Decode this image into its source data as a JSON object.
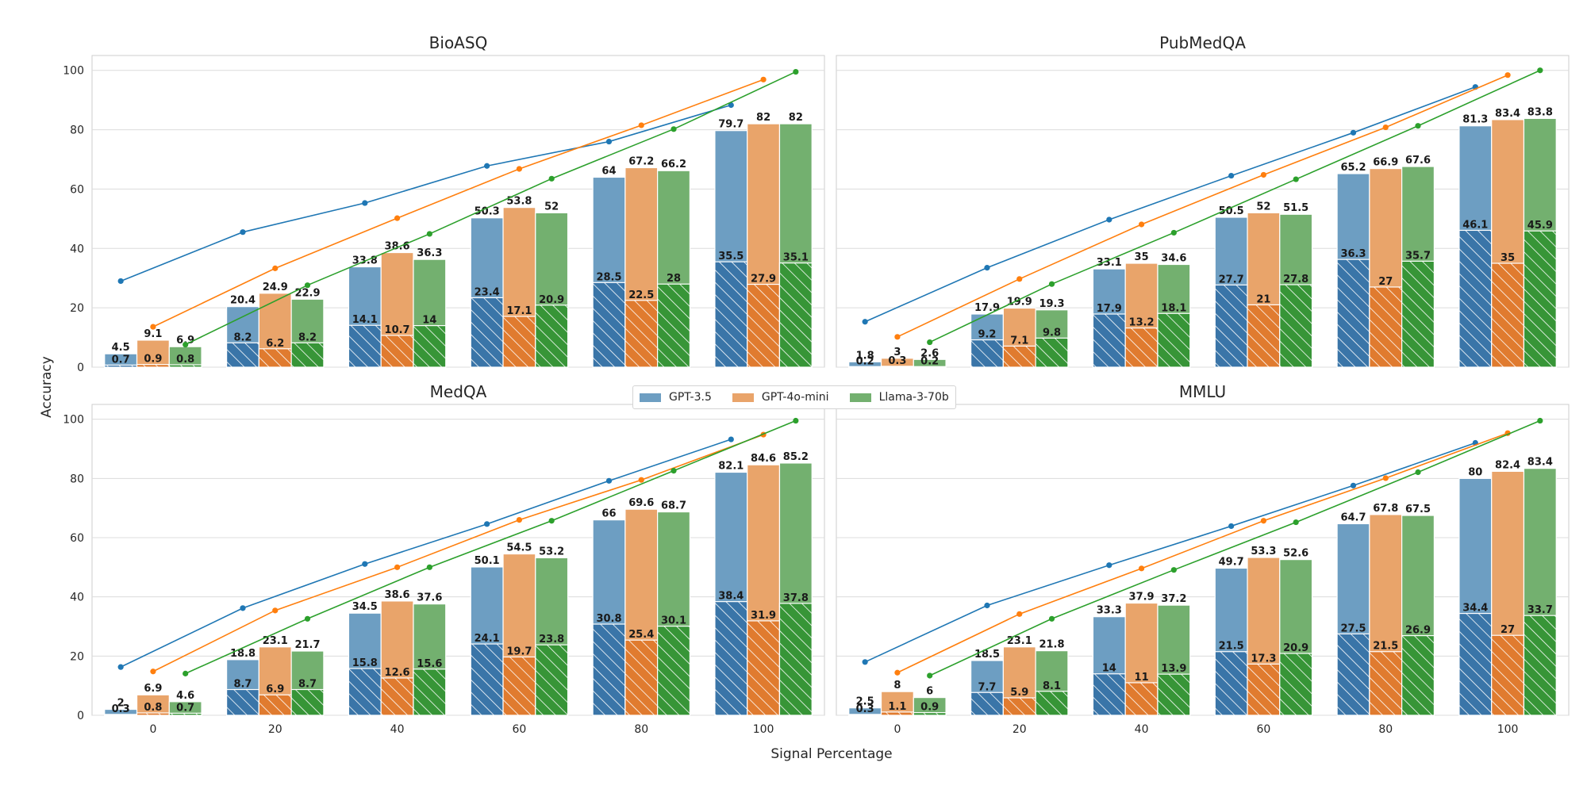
{
  "chart_data": {
    "type": "bar",
    "xlabel": "Signal Percentage",
    "ylabel": "Accuracy",
    "categories": [
      "0",
      "20",
      "40",
      "60",
      "80",
      "100"
    ],
    "ylim": [
      0,
      105
    ],
    "yticks": [
      "0",
      "20",
      "40",
      "60",
      "80",
      "100"
    ],
    "grid": true,
    "legend_position": "center",
    "series_names": [
      "GPT-3.5",
      "GPT-4o-mini",
      "Llama-3-70b"
    ],
    "colors": [
      "#1f77b4",
      "#ff7f0e",
      "#2ca02c"
    ],
    "panels": [
      {
        "title": "BioASQ",
        "totals": [
          [
            4.5,
            20.4,
            33.8,
            50.3,
            64,
            79.7
          ],
          [
            9.1,
            24.9,
            38.6,
            53.8,
            67.2,
            82
          ],
          [
            6.9,
            22.9,
            36.3,
            52,
            66.2,
            82
          ]
        ],
        "inner": [
          [
            0.7,
            8.2,
            14.1,
            23.4,
            28.5,
            35.5
          ],
          [
            0.9,
            6.2,
            10.7,
            17.1,
            22.5,
            27.9
          ],
          [
            0.8,
            8.2,
            14,
            20.9,
            28,
            35.1
          ]
        ],
        "lines": [
          [
            29,
            45.5,
            55.3,
            67.8,
            76,
            88.3
          ],
          [
            13.6,
            33.3,
            50.2,
            66.8,
            81.5,
            96.9
          ],
          [
            7.6,
            27.6,
            44.9,
            63.5,
            80.2,
            99.5
          ]
        ]
      },
      {
        "title": "PubMedQA",
        "totals": [
          [
            1.8,
            17.9,
            33.1,
            50.5,
            65.2,
            81.3
          ],
          [
            3,
            19.9,
            35,
            52,
            66.9,
            83.4
          ],
          [
            2.6,
            19.3,
            34.6,
            51.5,
            67.6,
            83.8
          ]
        ],
        "inner": [
          [
            0.2,
            9.2,
            17.9,
            27.7,
            36.3,
            46.1
          ],
          [
            0.3,
            7.1,
            13.2,
            21,
            27,
            35
          ],
          [
            0.2,
            9.8,
            18.1,
            27.8,
            35.7,
            45.9
          ]
        ],
        "lines": [
          [
            15.3,
            33.5,
            49.7,
            64.5,
            79,
            94.4
          ],
          [
            10.2,
            29.7,
            48.1,
            64.8,
            80.8,
            98.4
          ],
          [
            8.4,
            28,
            45.3,
            63.3,
            81.3,
            100
          ]
        ]
      },
      {
        "title": "MedQA",
        "totals": [
          [
            2,
            18.8,
            34.5,
            50.1,
            66,
            82.1
          ],
          [
            6.9,
            23.1,
            38.6,
            54.5,
            69.6,
            84.6
          ],
          [
            4.6,
            21.7,
            37.6,
            53.2,
            68.7,
            85.2
          ]
        ],
        "inner": [
          [
            0.3,
            8.7,
            15.8,
            24.1,
            30.8,
            38.4
          ],
          [
            0.8,
            6.9,
            12.6,
            19.7,
            25.4,
            31.9
          ],
          [
            0.7,
            8.7,
            15.6,
            23.8,
            30.1,
            37.8
          ]
        ],
        "lines": [
          [
            16.3,
            36.2,
            51.1,
            64.6,
            79.2,
            93.2
          ],
          [
            14.8,
            35.4,
            50,
            66,
            79.5,
            94.8
          ],
          [
            14.1,
            32.6,
            50,
            65.7,
            82.6,
            99.5
          ]
        ]
      },
      {
        "title": "MMLU",
        "totals": [
          [
            2.5,
            18.5,
            33.3,
            49.7,
            64.7,
            80
          ],
          [
            8,
            23.1,
            37.9,
            53.3,
            67.8,
            82.4
          ],
          [
            6,
            21.8,
            37.2,
            52.6,
            67.5,
            83.4
          ]
        ],
        "inner": [
          [
            0.3,
            7.7,
            14,
            21.5,
            27.5,
            34.4
          ],
          [
            1.1,
            5.9,
            11,
            17.3,
            21.5,
            27
          ],
          [
            0.9,
            8.1,
            13.9,
            20.9,
            26.9,
            33.7
          ]
        ],
        "lines": [
          [
            18,
            37.1,
            50.7,
            63.9,
            77.6,
            92
          ],
          [
            14.4,
            34.2,
            49.6,
            65.7,
            80.1,
            95.3
          ],
          [
            13.4,
            32.6,
            49.1,
            65.2,
            82.1,
            99.5
          ]
        ]
      }
    ]
  }
}
